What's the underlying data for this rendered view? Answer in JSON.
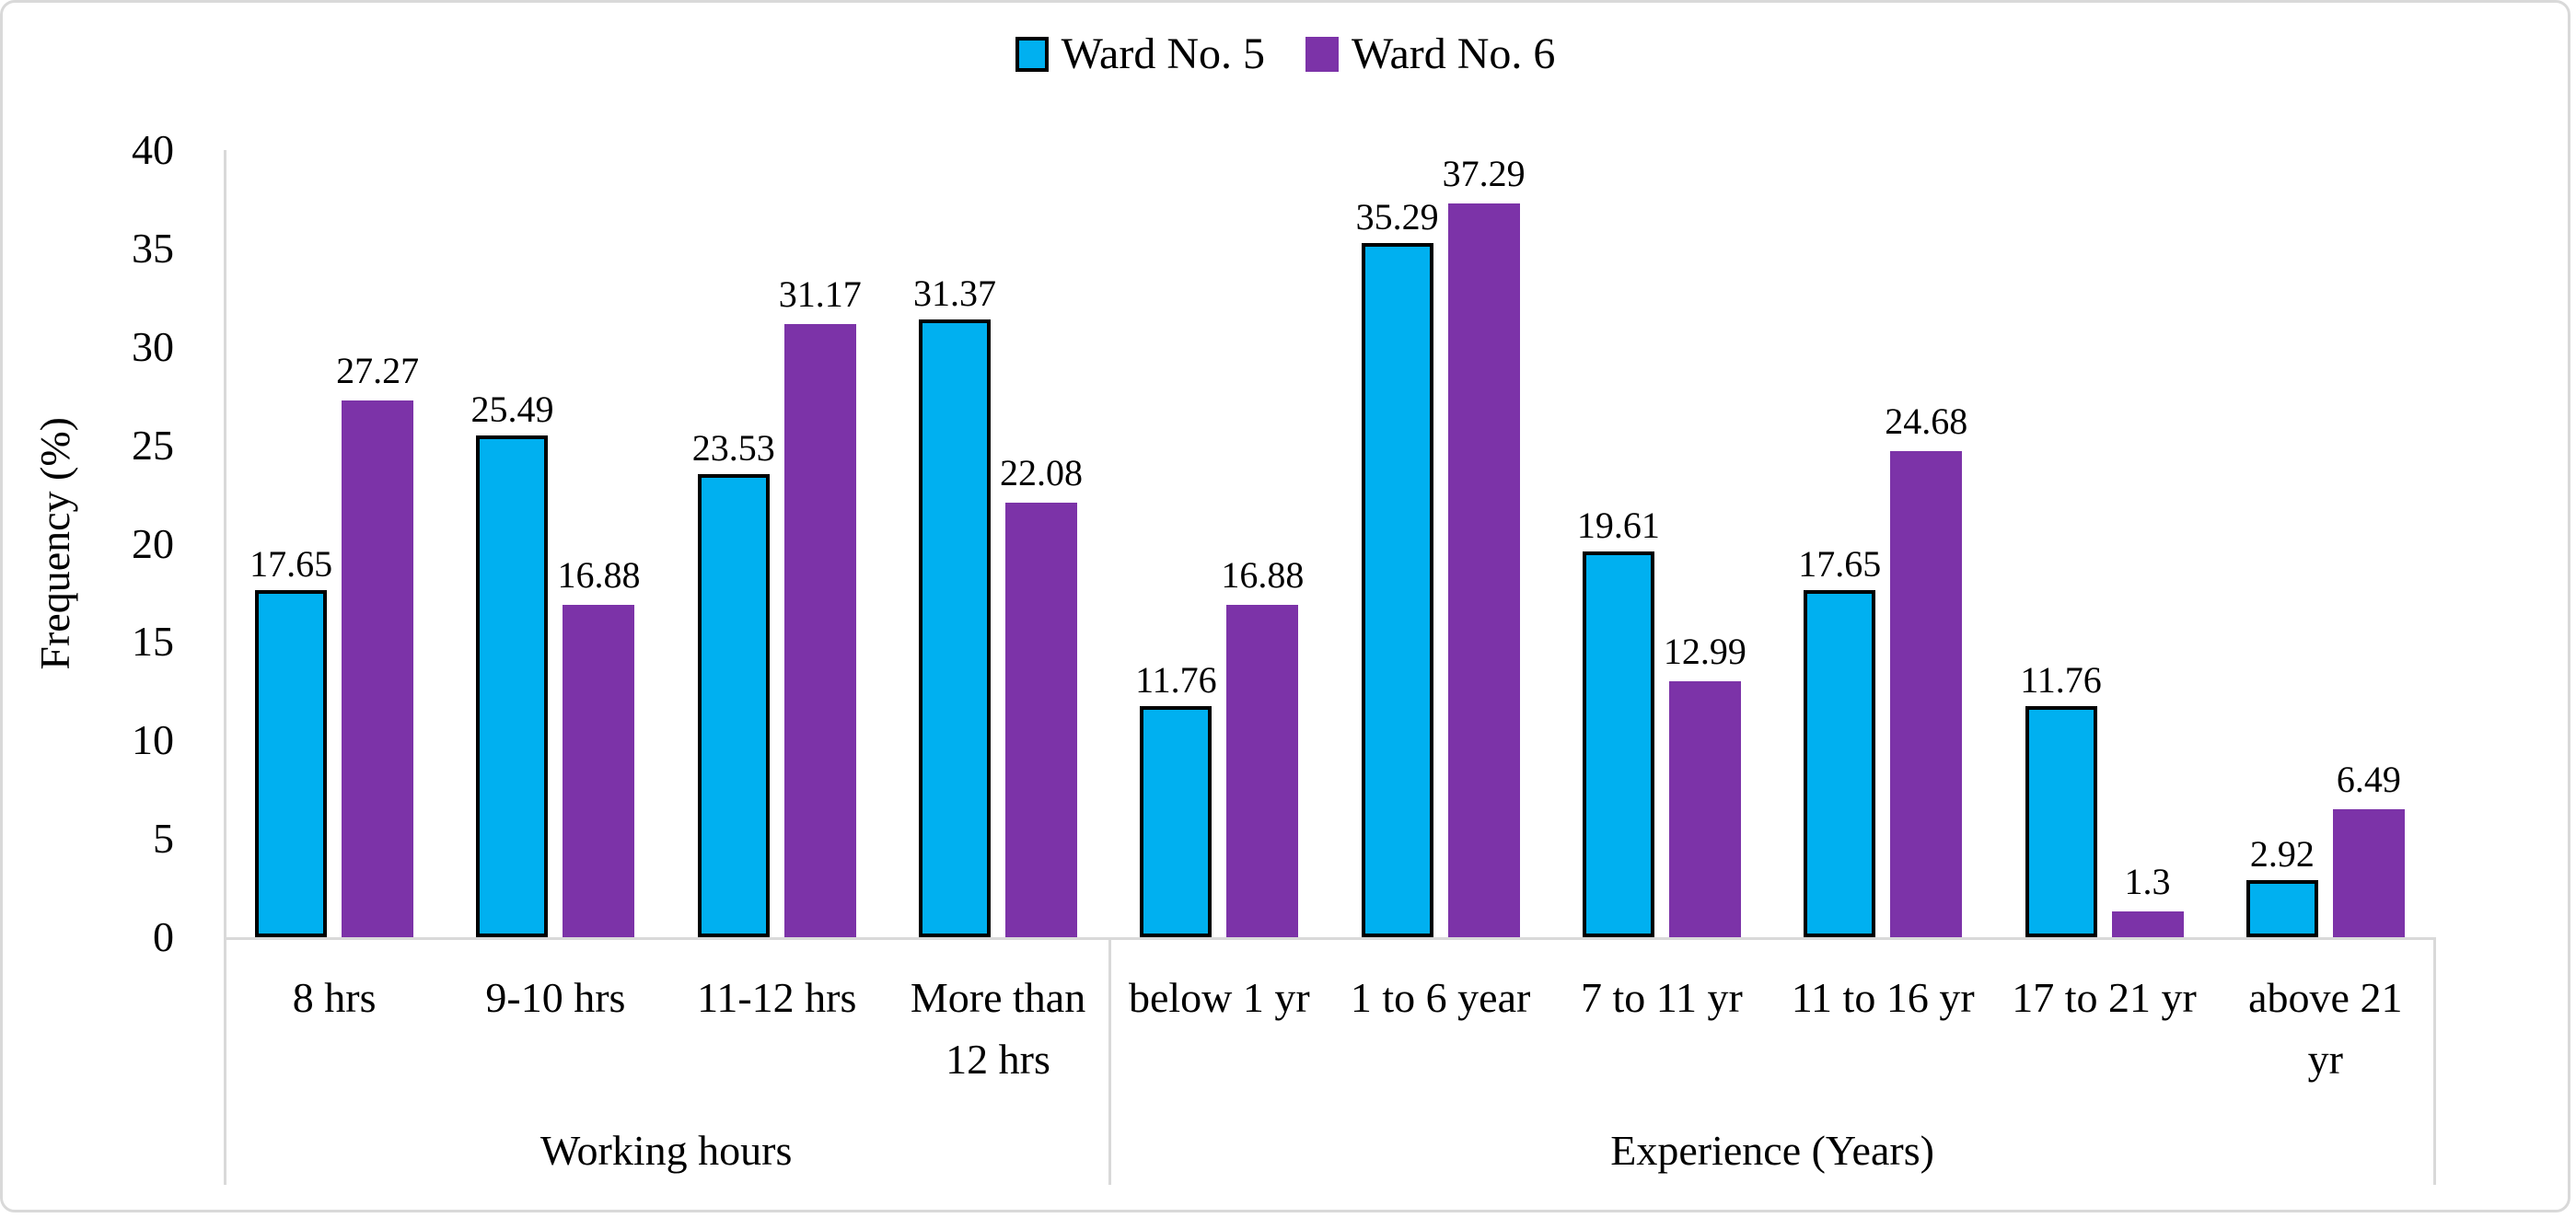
{
  "figure": {
    "y_axis_title": "Frequency (%)"
  },
  "chart_data": {
    "type": "bar",
    "title": "",
    "xlabel": "",
    "ylabel": "Frequency (%)",
    "ylim": [
      0,
      40
    ],
    "yticks": [
      0,
      5,
      10,
      15,
      20,
      25,
      30,
      35,
      40
    ],
    "grid": false,
    "data_labels": true,
    "legend_position": "top-center",
    "categories": [
      "8 hrs",
      "9-10 hrs",
      "11-12 hrs",
      "More than 12 hrs",
      "below 1 yr",
      "1 to 6 year",
      "7 to 11 yr",
      "11 to 16 yr",
      "17 to 21 yr",
      "above 21 yr"
    ],
    "category_labels": [
      "8 hrs",
      "9-10 hrs",
      "11-12 hrs",
      "More than\n12 hrs",
      "below 1 yr",
      "1 to 6 year",
      "7 to 11 yr",
      "11 to 16 yr",
      "17 to 21 yr",
      "above 21\nyr"
    ],
    "groups": [
      {
        "label": "Working hours",
        "span": 4
      },
      {
        "label": "Experience (Years)",
        "span": 6
      }
    ],
    "series": [
      {
        "name": "Ward No. 5",
        "color": "#00B0F0",
        "border_color": "#000000",
        "values": [
          17.65,
          25.49,
          23.53,
          31.37,
          11.76,
          35.29,
          19.61,
          17.65,
          11.76,
          2.92
        ]
      },
      {
        "name": "Ward No. 6",
        "color": "#7C33A8",
        "border_color": null,
        "values": [
          27.27,
          16.88,
          31.17,
          22.08,
          16.88,
          37.29,
          12.99,
          24.68,
          1.3,
          6.49
        ]
      }
    ],
    "axis_color": "#D9D9D9",
    "text_color": "#000000"
  }
}
